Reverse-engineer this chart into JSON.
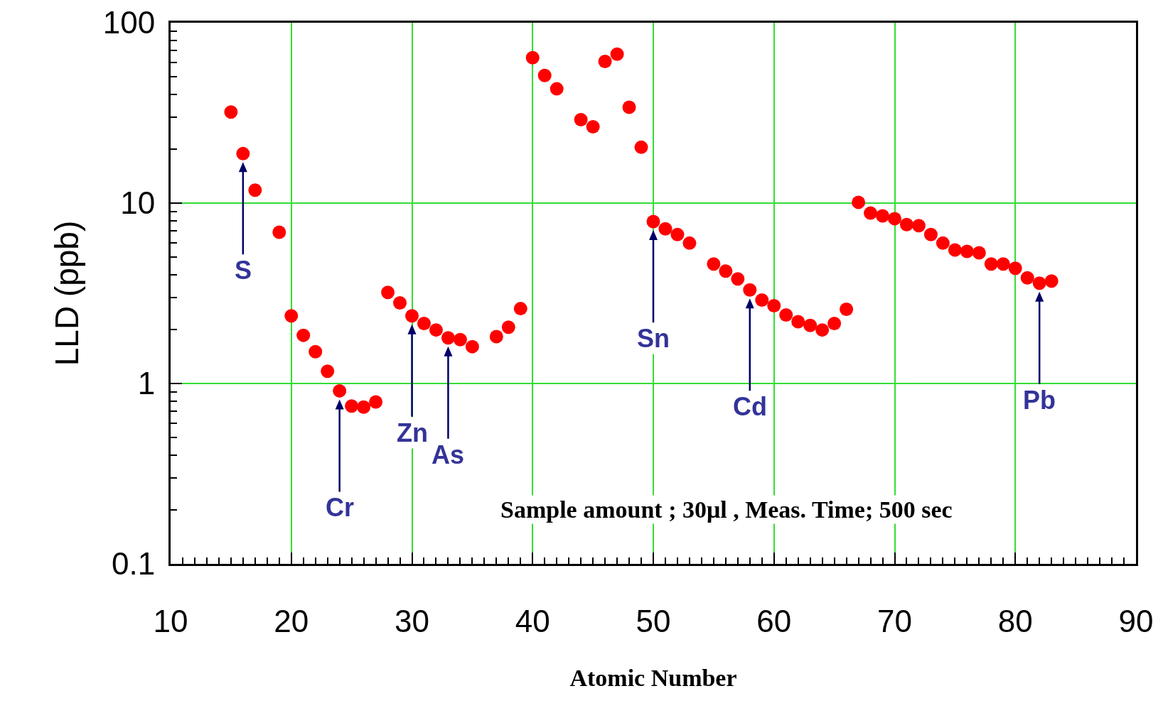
{
  "chart_data": {
    "type": "scatter",
    "xlabel": "Atomic Number",
    "ylabel": "LLD (ppb)",
    "x": [
      15,
      16,
      17,
      19,
      20,
      21,
      22,
      23,
      24,
      25,
      26,
      27,
      28,
      29,
      30,
      31,
      32,
      33,
      34,
      35,
      37,
      38,
      39,
      40,
      41,
      42,
      44,
      45,
      46,
      47,
      48,
      49,
      50,
      51,
      52,
      53,
      55,
      56,
      57,
      58,
      59,
      60,
      61,
      62,
      63,
      64,
      65,
      66,
      67,
      68,
      69,
      70,
      71,
      72,
      73,
      74,
      75,
      76,
      77,
      78,
      79,
      80,
      81,
      82,
      83
    ],
    "series": [
      {
        "color": "#ff0000",
        "values": [
          32,
          18.8,
          11.8,
          6.9,
          2.37,
          1.85,
          1.5,
          1.17,
          0.91,
          0.75,
          0.74,
          0.79,
          3.2,
          2.8,
          2.37,
          2.15,
          1.98,
          1.79,
          1.75,
          1.6,
          1.82,
          2.05,
          2.6,
          64,
          51,
          43,
          29,
          26.5,
          61,
          67,
          34,
          20.4,
          7.9,
          7.2,
          6.7,
          6.0,
          4.6,
          4.2,
          3.8,
          3.3,
          2.9,
          2.7,
          2.4,
          2.2,
          2.1,
          1.98,
          2.15,
          2.58,
          10.1,
          8.8,
          8.5,
          8.2,
          7.6,
          7.5,
          6.7,
          6.0,
          5.5,
          5.4,
          5.3,
          4.6,
          4.6,
          4.35,
          3.85,
          3.6,
          3.7
        ]
      }
    ],
    "log": "y",
    "marker": "circle",
    "grid": true,
    "xlim": [
      10,
      90
    ],
    "ylim": [
      0.1,
      100
    ],
    "xticks": [
      10,
      {
        "value": 11,
        "label": null
      },
      {
        "value": 12,
        "label": null
      },
      {
        "value": 13,
        "label": null
      },
      {
        "value": 14,
        "label": null
      },
      {
        "value": 15,
        "label": null
      },
      {
        "value": 16,
        "label": null
      },
      {
        "value": 17,
        "label": null
      },
      {
        "value": 18,
        "label": null
      },
      {
        "value": 19,
        "label": null
      },
      20,
      {
        "value": 21,
        "label": null
      },
      {
        "value": 22,
        "label": null
      },
      {
        "value": 23,
        "label": null
      },
      {
        "value": 24,
        "label": null
      },
      {
        "value": 25,
        "label": null
      },
      {
        "value": 26,
        "label": null
      },
      {
        "value": 27,
        "label": null
      },
      {
        "value": 28,
        "label": null
      },
      {
        "value": 29,
        "label": null
      },
      30,
      {
        "value": 31,
        "label": null
      },
      {
        "value": 32,
        "label": null
      },
      {
        "value": 33,
        "label": null
      },
      {
        "value": 34,
        "label": null
      },
      {
        "value": 35,
        "label": null
      },
      {
        "value": 36,
        "label": null
      },
      {
        "value": 37,
        "label": null
      },
      {
        "value": 38,
        "label": null
      },
      {
        "value": 39,
        "label": null
      },
      40,
      {
        "value": 41,
        "label": null
      },
      {
        "value": 42,
        "label": null
      },
      {
        "value": 43,
        "label": null
      },
      {
        "value": 44,
        "label": null
      },
      {
        "value": 45,
        "label": null
      },
      {
        "value": 46,
        "label": null
      },
      {
        "value": 47,
        "label": null
      },
      {
        "value": 48,
        "label": null
      },
      {
        "value": 49,
        "label": null
      },
      50,
      {
        "value": 51,
        "label": null
      },
      {
        "value": 52,
        "label": null
      },
      {
        "value": 53,
        "label": null
      },
      {
        "value": 54,
        "label": null
      },
      {
        "value": 55,
        "label": null
      },
      {
        "value": 56,
        "label": null
      },
      {
        "value": 57,
        "label": null
      },
      {
        "value": 58,
        "label": null
      },
      {
        "value": 59,
        "label": null
      },
      60,
      {
        "value": 61,
        "label": null
      },
      {
        "value": 62,
        "label": null
      },
      {
        "value": 63,
        "label": null
      },
      {
        "value": 64,
        "label": null
      },
      {
        "value": 65,
        "label": null
      },
      {
        "value": 66,
        "label": null
      },
      {
        "value": 67,
        "label": null
      },
      {
        "value": 68,
        "label": null
      },
      {
        "value": 69,
        "label": null
      },
      70,
      {
        "value": 71,
        "label": null
      },
      {
        "value": 72,
        "label": null
      },
      {
        "value": 73,
        "label": null
      },
      {
        "value": 74,
        "label": null
      },
      {
        "value": 75,
        "label": null
      },
      {
        "value": 76,
        "label": null
      },
      {
        "value": 77,
        "label": null
      },
      {
        "value": 78,
        "label": null
      },
      {
        "value": 79,
        "label": null
      },
      80,
      {
        "value": 81,
        "label": null
      },
      {
        "value": 82,
        "label": null
      },
      {
        "value": 83,
        "label": null
      },
      {
        "value": 84,
        "label": null
      },
      {
        "value": 85,
        "label": null
      },
      {
        "value": 86,
        "label": null
      },
      {
        "value": 87,
        "label": null
      },
      {
        "value": 88,
        "label": null
      },
      {
        "value": 89,
        "label": null
      },
      90
    ],
    "yticks": [
      0.1,
      {
        "value": 0.2,
        "label": null
      },
      {
        "value": 0.3,
        "label": null
      },
      {
        "value": 0.4,
        "label": null
      },
      {
        "value": 0.5,
        "label": null
      },
      {
        "value": 0.6,
        "label": null
      },
      {
        "value": 0.7,
        "label": null
      },
      {
        "value": 0.8,
        "label": null
      },
      {
        "value": 0.9,
        "label": null
      },
      1,
      {
        "value": 2,
        "label": null
      },
      {
        "value": 3,
        "label": null
      },
      {
        "value": 4,
        "label": null
      },
      {
        "value": 5,
        "label": null
      },
      {
        "value": 6,
        "label": null
      },
      {
        "value": 7,
        "label": null
      },
      {
        "value": 8,
        "label": null
      },
      {
        "value": 9,
        "label": null
      },
      10,
      {
        "value": 20,
        "label": null
      },
      {
        "value": 30,
        "label": null
      },
      {
        "value": 40,
        "label": null
      },
      {
        "value": 50,
        "label": null
      },
      {
        "value": 60,
        "label": null
      },
      {
        "value": 70,
        "label": null
      },
      {
        "value": 80,
        "label": null
      },
      {
        "value": 90,
        "label": null
      },
      100
    ],
    "annotations": [
      {
        "text": "S",
        "x": 16,
        "y": 18.8
      },
      {
        "text": "Cr",
        "x": 24,
        "y": 0.91
      },
      {
        "text": "Zn",
        "x": 30,
        "y": 2.37
      },
      {
        "text": "As",
        "x": 33,
        "y": 1.79
      },
      {
        "text": "Sn",
        "x": 50,
        "y": 7.9
      },
      {
        "text": "Cd",
        "x": 58,
        "y": 3.3
      },
      {
        "text": "Pb",
        "x": 82,
        "y": 3.6
      },
      "Sample amount ; 30μl , Meas. Time; 500 sec"
    ]
  }
}
